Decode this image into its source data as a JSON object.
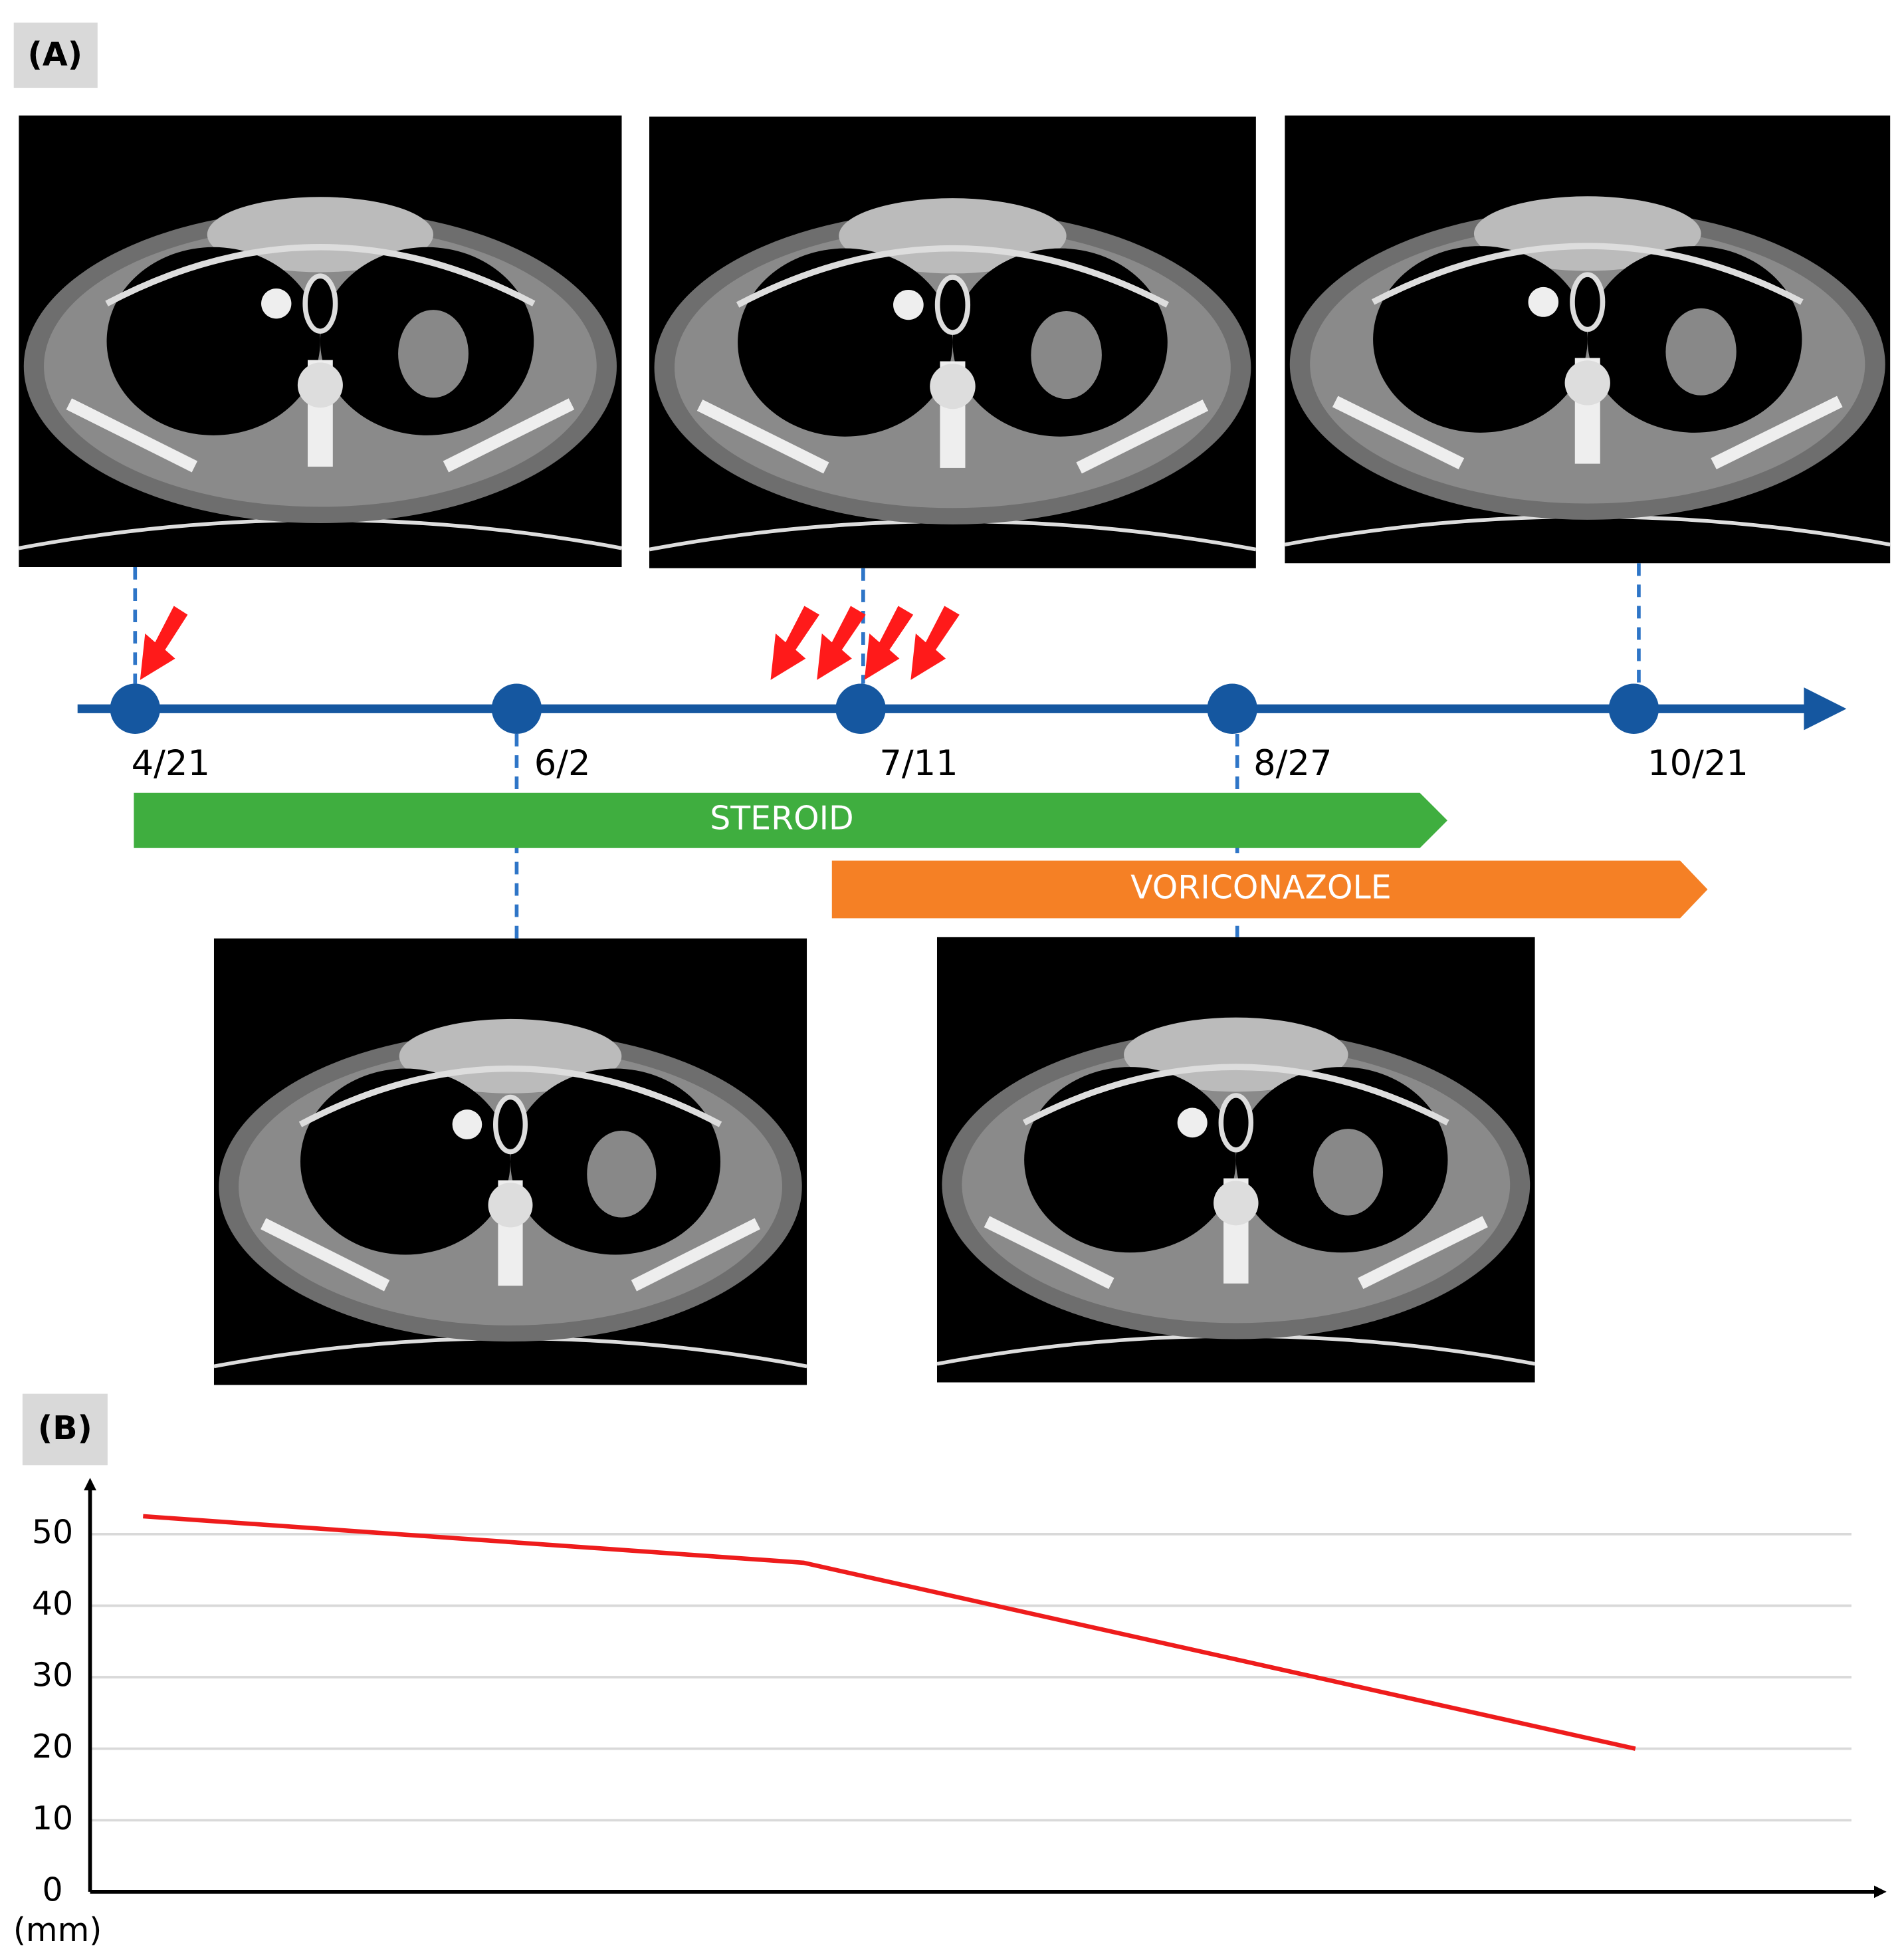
{
  "panel_a": {
    "label": "(A)",
    "timeline": {
      "dates": [
        "4/21",
        "6/2",
        "7/11",
        "8/27",
        "10/21"
      ]
    },
    "treatments": [
      "STEROID",
      "VORICONAZOLE"
    ]
  },
  "panel_b": {
    "label": "(B)"
  },
  "chart_data": {
    "type": "line",
    "y_unit": "(mm)",
    "x": [
      0,
      81,
      183
    ],
    "xlim": [
      -6.5,
      209.5
    ],
    "series": [
      {
        "color": "#ee1c1c",
        "values": [
          52.5,
          46,
          20
        ]
      }
    ],
    "ylim": [
      0,
      57
    ],
    "yticks": [
      0,
      10,
      20,
      30,
      40,
      50
    ],
    "grid": true
  }
}
